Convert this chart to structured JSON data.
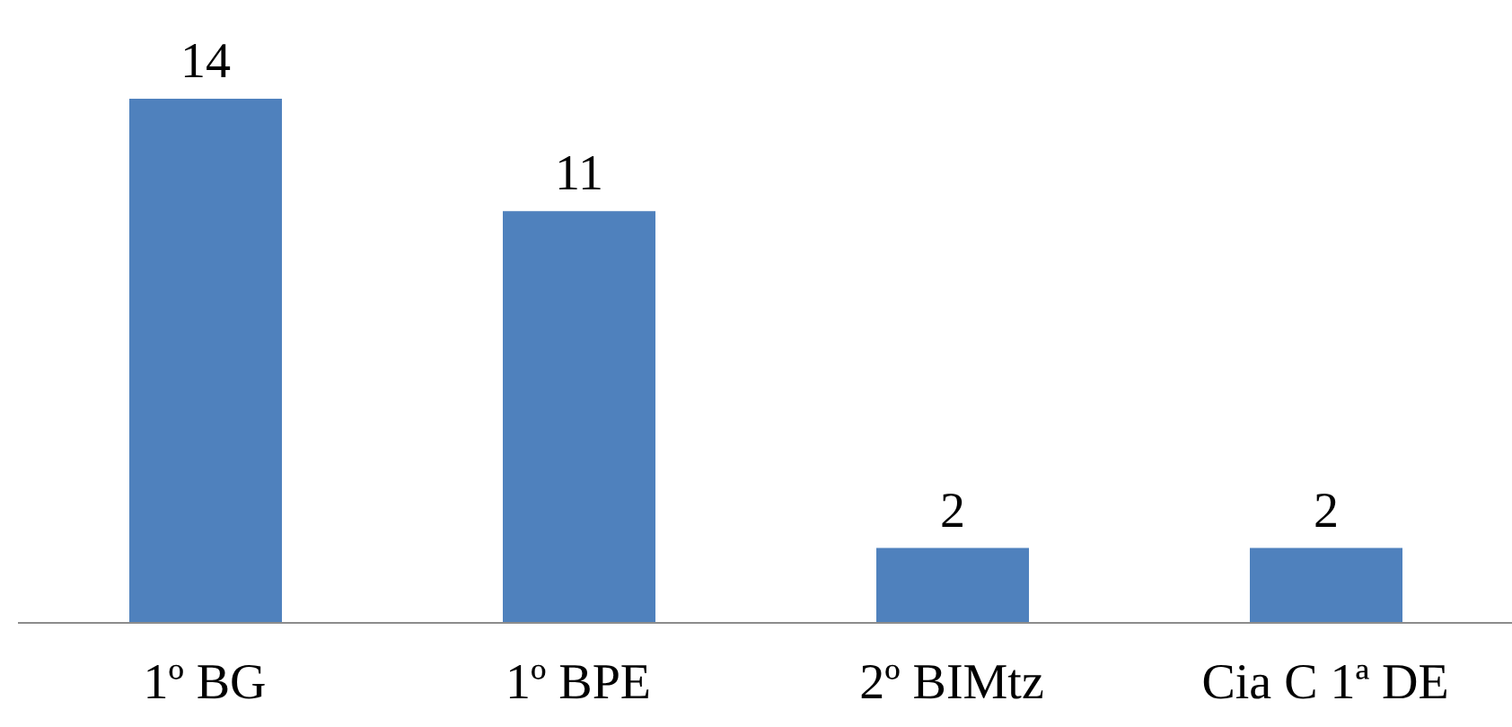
{
  "chart_data": {
    "type": "bar",
    "categories": [
      "1º BG",
      "1º BPE",
      "2º BIMtz",
      "Cia C 1ª DE"
    ],
    "values": [
      14,
      11,
      2,
      2
    ],
    "color": "#4f81bd",
    "data_labels": true
  }
}
